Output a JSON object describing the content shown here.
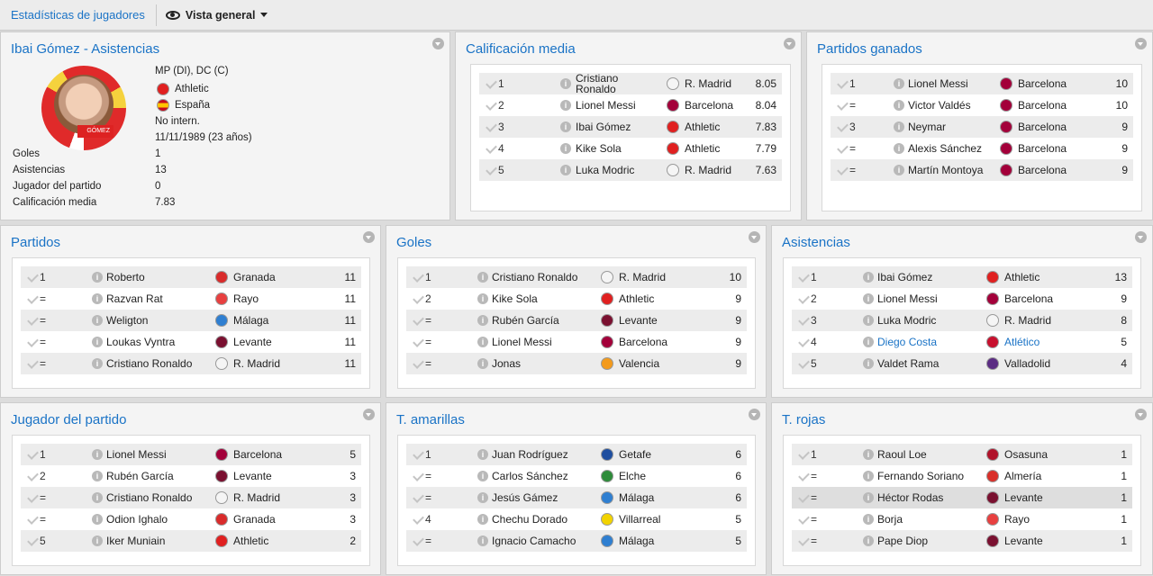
{
  "header": {
    "title": "Estadísticas de jugadores",
    "view_label": "Vista general"
  },
  "profile": {
    "title": "Ibai Gómez - Asistencias",
    "position": "MP (DI), DC (C)",
    "club": "Athletic",
    "nation": "España",
    "intl": "No intern.",
    "dob": "11/11/1989 (23 años)",
    "shirt_name": "GÓMEZ",
    "stats": [
      {
        "label": "Goles",
        "value": "1"
      },
      {
        "label": "Asistencias",
        "value": "13"
      },
      {
        "label": "Jugador del partido",
        "value": "0"
      },
      {
        "label": "Calificación media",
        "value": "7.83"
      }
    ]
  },
  "panels": [
    {
      "title": "Calificación media",
      "rows": [
        {
          "rank": "1",
          "player": "Cristiano Ronaldo",
          "club": "R. Madrid",
          "value": "8.05",
          "color": "#f5f5f5"
        },
        {
          "rank": "2",
          "player": "Lionel Messi",
          "club": "Barcelona",
          "value": "8.04",
          "color": "#a3003a"
        },
        {
          "rank": "3",
          "player": "Ibai Gómez",
          "club": "Athletic",
          "value": "7.83",
          "color": "#e02020"
        },
        {
          "rank": "4",
          "player": "Kike Sola",
          "club": "Athletic",
          "value": "7.79",
          "color": "#e02020"
        },
        {
          "rank": "5",
          "player": "Luka Modric",
          "club": "R. Madrid",
          "value": "7.63",
          "color": "#f5f5f5"
        }
      ]
    },
    {
      "title": "Partidos ganados",
      "rows": [
        {
          "rank": "1",
          "player": "Lionel Messi",
          "club": "Barcelona",
          "value": "10",
          "color": "#a3003a"
        },
        {
          "rank": "=",
          "player": "Victor Valdés",
          "club": "Barcelona",
          "value": "10",
          "color": "#a3003a"
        },
        {
          "rank": "3",
          "player": "Neymar",
          "club": "Barcelona",
          "value": "9",
          "color": "#a3003a"
        },
        {
          "rank": "=",
          "player": "Alexis Sánchez",
          "club": "Barcelona",
          "value": "9",
          "color": "#a3003a"
        },
        {
          "rank": "=",
          "player": "Martín Montoya",
          "club": "Barcelona",
          "value": "9",
          "color": "#a3003a"
        }
      ]
    },
    {
      "title": "Partidos",
      "rows": [
        {
          "rank": "1",
          "player": "Roberto",
          "club": "Granada",
          "value": "11",
          "color": "#d92b2b"
        },
        {
          "rank": "=",
          "player": "Razvan Rat",
          "club": "Rayo",
          "value": "11",
          "color": "#e84040"
        },
        {
          "rank": "=",
          "player": "Weligton",
          "club": "Málaga",
          "value": "11",
          "color": "#2f7fd1"
        },
        {
          "rank": "=",
          "player": "Loukas Vyntra",
          "club": "Levante",
          "value": "11",
          "color": "#7a1030"
        },
        {
          "rank": "=",
          "player": "Cristiano Ronaldo",
          "club": "R. Madrid",
          "value": "11",
          "color": "#f5f5f5"
        }
      ]
    },
    {
      "title": "Goles",
      "rows": [
        {
          "rank": "1",
          "player": "Cristiano Ronaldo",
          "club": "R. Madrid",
          "value": "10",
          "color": "#f5f5f5"
        },
        {
          "rank": "2",
          "player": "Kike Sola",
          "club": "Athletic",
          "value": "9",
          "color": "#e02020"
        },
        {
          "rank": "=",
          "player": "Rubén García",
          "club": "Levante",
          "value": "9",
          "color": "#7a1030"
        },
        {
          "rank": "=",
          "player": "Lionel Messi",
          "club": "Barcelona",
          "value": "9",
          "color": "#a3003a"
        },
        {
          "rank": "=",
          "player": "Jonas",
          "club": "Valencia",
          "value": "9",
          "color": "#f39a1c"
        }
      ]
    },
    {
      "title": "Asistencias",
      "rows": [
        {
          "rank": "1",
          "player": "Ibai Gómez",
          "club": "Athletic",
          "value": "13",
          "color": "#e02020"
        },
        {
          "rank": "2",
          "player": "Lionel Messi",
          "club": "Barcelona",
          "value": "9",
          "color": "#a3003a"
        },
        {
          "rank": "3",
          "player": "Luka Modric",
          "club": "R. Madrid",
          "value": "8",
          "color": "#f5f5f5"
        },
        {
          "rank": "4",
          "player": "Diego Costa",
          "club": "Atlético",
          "value": "5",
          "color": "#c8102e",
          "link": true
        },
        {
          "rank": "5",
          "player": "Valdet Rama",
          "club": "Valladolid",
          "value": "4",
          "color": "#5b2c83"
        }
      ]
    },
    {
      "title": "Jugador del partido",
      "rows": [
        {
          "rank": "1",
          "player": "Lionel Messi",
          "club": "Barcelona",
          "value": "5",
          "color": "#a3003a"
        },
        {
          "rank": "2",
          "player": "Rubén García",
          "club": "Levante",
          "value": "3",
          "color": "#7a1030"
        },
        {
          "rank": "=",
          "player": "Cristiano Ronaldo",
          "club": "R. Madrid",
          "value": "3",
          "color": "#f5f5f5"
        },
        {
          "rank": "=",
          "player": "Odion Ighalo",
          "club": "Granada",
          "value": "3",
          "color": "#d92b2b"
        },
        {
          "rank": "5",
          "player": "Iker Muniain",
          "club": "Athletic",
          "value": "2",
          "color": "#e02020"
        }
      ]
    },
    {
      "title": "T. amarillas",
      "rows": [
        {
          "rank": "1",
          "player": "Juan Rodríguez",
          "club": "Getafe",
          "value": "6",
          "color": "#1f4fa0"
        },
        {
          "rank": "=",
          "player": "Carlos Sánchez",
          "club": "Elche",
          "value": "6",
          "color": "#2e8b3a"
        },
        {
          "rank": "=",
          "player": "Jesús Gámez",
          "club": "Málaga",
          "value": "6",
          "color": "#2f7fd1"
        },
        {
          "rank": "4",
          "player": "Chechu Dorado",
          "club": "Villarreal",
          "value": "5",
          "color": "#f2d300"
        },
        {
          "rank": "=",
          "player": "Ignacio Camacho",
          "club": "Málaga",
          "value": "5",
          "color": "#2f7fd1"
        }
      ]
    },
    {
      "title": "T. rojas",
      "rows": [
        {
          "rank": "1",
          "player": "Raoul Loe",
          "club": "Osasuna",
          "value": "1",
          "color": "#b0122a"
        },
        {
          "rank": "=",
          "player": "Fernando Soriano",
          "club": "Almería",
          "value": "1",
          "color": "#d9302a"
        },
        {
          "rank": "=",
          "player": "Héctor Rodas",
          "club": "Levante",
          "value": "1",
          "color": "#7a1030",
          "highlight": true
        },
        {
          "rank": "=",
          "player": "Borja",
          "club": "Rayo",
          "value": "1",
          "color": "#e84040"
        },
        {
          "rank": "=",
          "player": "Pape Diop",
          "club": "Levante",
          "value": "1",
          "color": "#7a1030"
        }
      ]
    }
  ]
}
